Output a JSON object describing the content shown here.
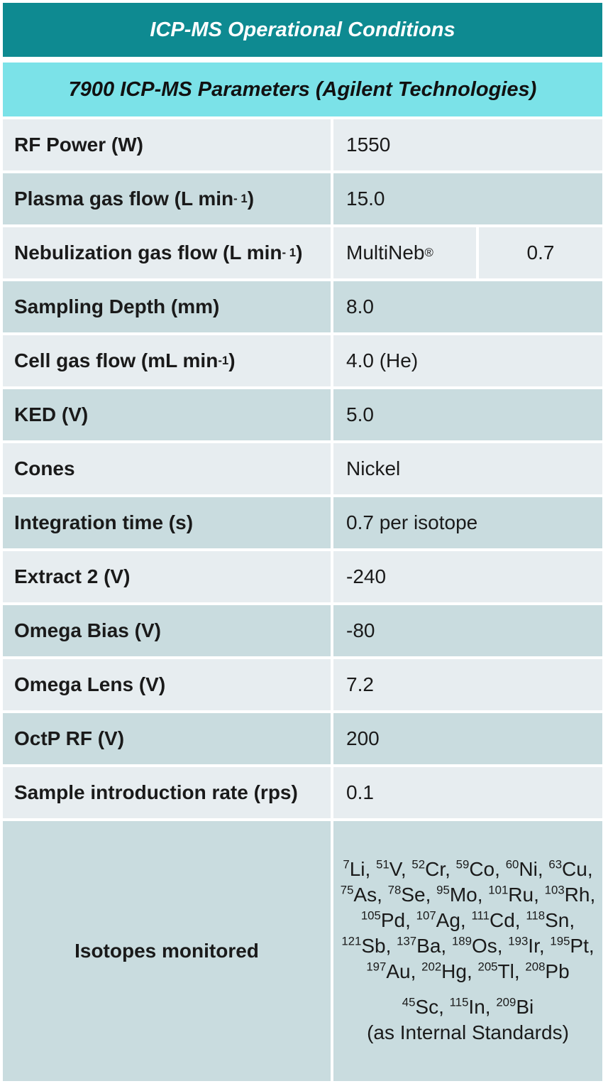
{
  "title": "ICP-MS Operational Conditions",
  "subtitle": "7900 ICP-MS Parameters (Agilent Technologies)",
  "rows": [
    {
      "label": "RF Power (W)",
      "value": "1550"
    },
    {
      "label_pre": "Plasma gas flow (L min",
      "label_sup": "- 1",
      "label_post": ")",
      "value": "15.0"
    },
    {
      "label_pre": "Nebulization gas flow (L min",
      "label_sup": "- 1",
      "label_post": ")",
      "value_a_pre": "MultiNeb",
      "value_a_sup": "®",
      "value_b": "0.7"
    },
    {
      "label": "Sampling Depth (mm)",
      "value": "8.0"
    },
    {
      "label_pre": "Cell gas flow (mL min",
      "label_sup": "-1",
      "label_post": ")",
      "value": "4.0 (He)"
    },
    {
      "label": "KED (V)",
      "value": "5.0"
    },
    {
      "label": "Cones",
      "value": "Nickel"
    },
    {
      "label": "Integration time (s)",
      "value": "0.7 per isotope"
    },
    {
      "label": "Extract 2 (V)",
      "value": "-240"
    },
    {
      "label": "Omega Bias (V)",
      "value": "-80"
    },
    {
      "label": "Omega Lens (V)",
      "value": "7.2"
    },
    {
      "label": "OctP RF (V)",
      "value": "200"
    },
    {
      "label": "Sample introduction rate (rps)",
      "value": "0.1"
    }
  ],
  "isotopes": {
    "label": "Isotopes monitored",
    "monitored": [
      {
        "mass": "7",
        "el": "Li"
      },
      {
        "mass": "51",
        "el": "V"
      },
      {
        "mass": "52",
        "el": "Cr"
      },
      {
        "mass": "59",
        "el": "Co"
      },
      {
        "mass": "60",
        "el": "Ni"
      },
      {
        "mass": "63",
        "el": "Cu"
      },
      {
        "mass": "75",
        "el": "As"
      },
      {
        "mass": "78",
        "el": "Se"
      },
      {
        "mass": "95",
        "el": "Mo"
      },
      {
        "mass": "101",
        "el": "Ru"
      },
      {
        "mass": "103",
        "el": "Rh"
      },
      {
        "mass": "105",
        "el": "Pd"
      },
      {
        "mass": "107",
        "el": "Ag"
      },
      {
        "mass": "111",
        "el": "Cd"
      },
      {
        "mass": "118",
        "el": "Sn"
      },
      {
        "mass": "121",
        "el": "Sb"
      },
      {
        "mass": "137",
        "el": "Ba"
      },
      {
        "mass": "189",
        "el": "Os"
      },
      {
        "mass": "193",
        "el": "Ir"
      },
      {
        "mass": "195",
        "el": "Pt"
      },
      {
        "mass": "197",
        "el": "Au"
      },
      {
        "mass": "202",
        "el": "Hg"
      },
      {
        "mass": "205",
        "el": "Tl"
      },
      {
        "mass": "208",
        "el": "Pb"
      }
    ],
    "standards": [
      {
        "mass": "45",
        "el": "Sc"
      },
      {
        "mass": "115",
        "el": "In"
      },
      {
        "mass": "209",
        "el": "Bi"
      }
    ],
    "standards_note": "(as Internal Standards)"
  }
}
